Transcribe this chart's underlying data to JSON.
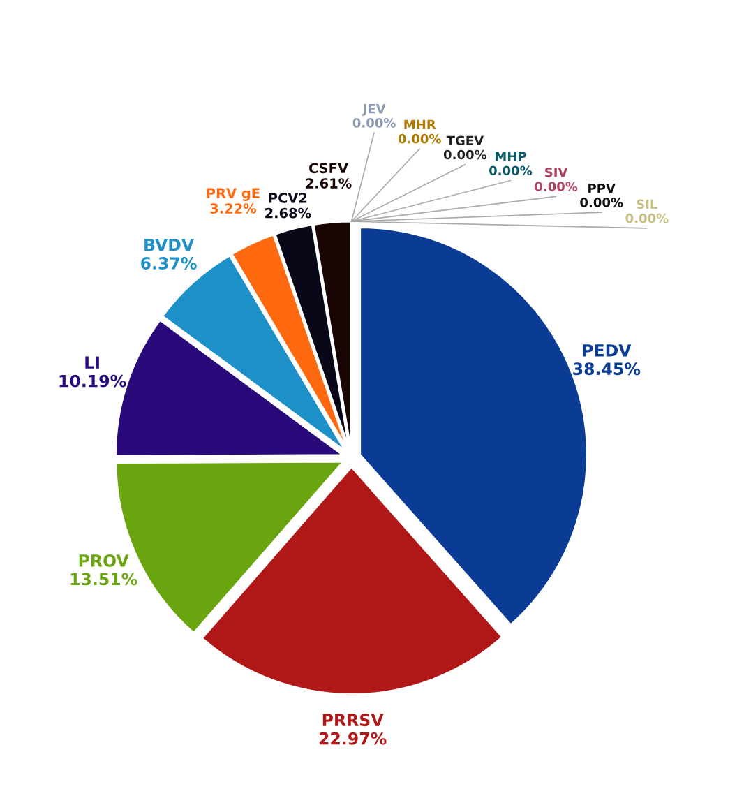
{
  "chart_data": {
    "type": "pie",
    "categories": [
      "PEDV",
      "PRRSV",
      "PROV",
      "LI",
      "BVDV",
      "PRV gE",
      "PCV2",
      "CSFV",
      "JEV",
      "MHR",
      "TGEV",
      "MHP",
      "SIV",
      "PPV",
      "SIL"
    ],
    "values": [
      38.45,
      22.97,
      13.51,
      10.19,
      6.37,
      3.22,
      2.68,
      2.61,
      0,
      0,
      0,
      0,
      0,
      0,
      0
    ],
    "value_labels": [
      "38.45%",
      "22.97%",
      "13.51%",
      "10.19%",
      "6.37%",
      "3.22%",
      "2.68%",
      "2.61%",
      "0.00%",
      "0.00%",
      "0.00%",
      "0.00%",
      "0.00%",
      "0.00%",
      "0.00%"
    ],
    "colors": [
      "#0a3c96",
      "#b01818",
      "#6aa510",
      "#2a0a7a",
      "#1e90c8",
      "#ff6a10",
      "#080818",
      "#1a0505",
      "#8a9ab0",
      "#b07a00",
      "#202020",
      "#0a5a6a",
      "#b04060",
      "#101010",
      "#c8c080"
    ]
  }
}
